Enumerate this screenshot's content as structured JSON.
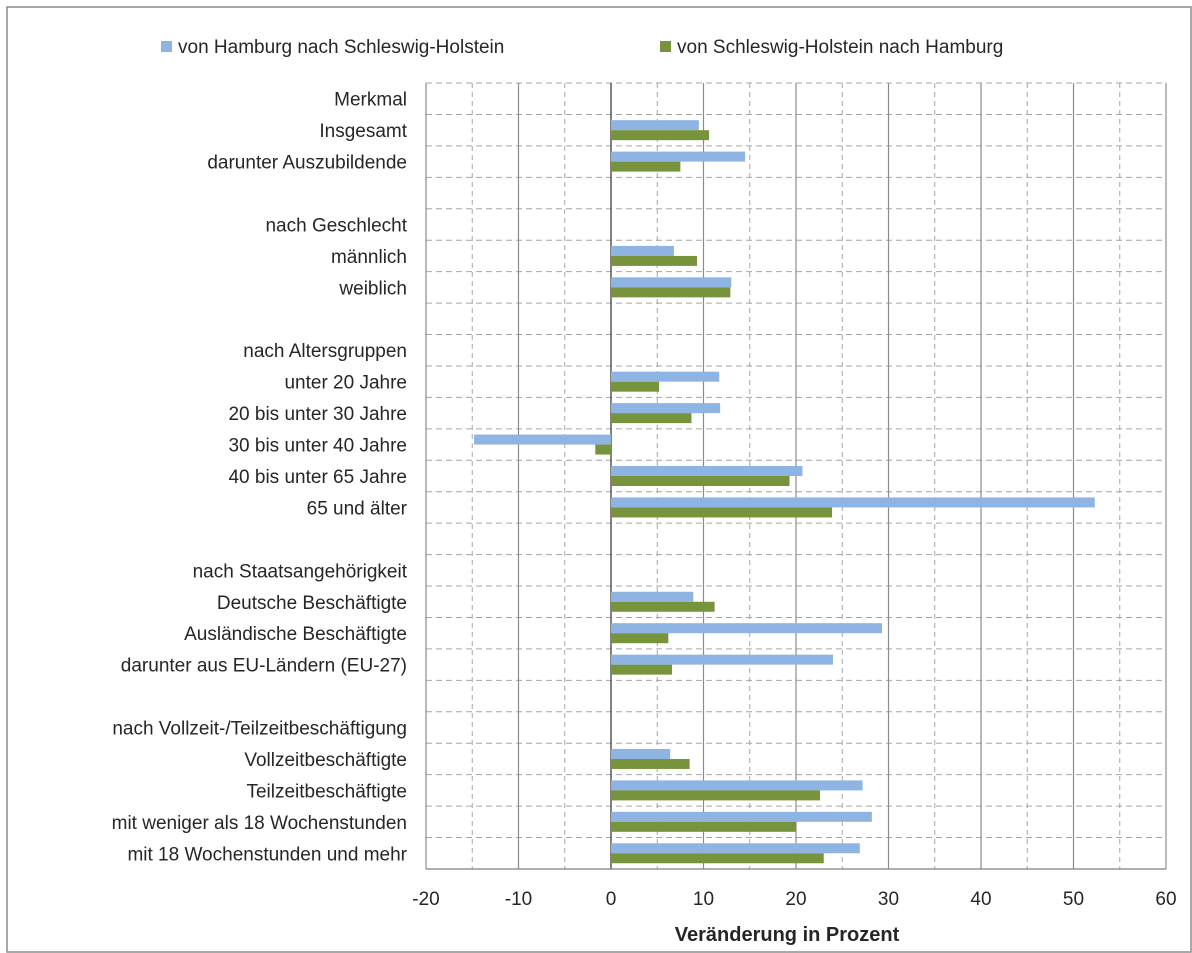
{
  "chart_data": {
    "type": "bar",
    "orientation": "horizontal",
    "categories": [
      "Merkmal",
      "Insgesamt",
      "darunter Auszubildende",
      "",
      "nach Geschlecht",
      "männlich",
      "weiblich",
      "",
      "nach Altersgruppen",
      "unter 20 Jahre",
      "20 bis unter 30 Jahre",
      "30 bis unter 40 Jahre",
      "40 bis unter 65 Jahre",
      "65 und älter",
      "",
      "nach Staatsangehörigkeit",
      "Deutsche Beschäftigte",
      "Ausländische Beschäftigte",
      "darunter aus EU-Ländern (EU-27)",
      "",
      "nach Vollzeit-/Teilzeitbeschäftigung",
      "Vollzeitbeschäftigte",
      "Teilzeitbeschäftigte",
      "mit weniger als 18 Wochenstunden",
      "mit 18 Wochenstunden und mehr"
    ],
    "series": [
      {
        "name": "von Hamburg nach Schleswig-Holstein",
        "color": "#8eb4e3",
        "values": [
          null,
          9.5,
          14.5,
          null,
          null,
          6.8,
          13.0,
          null,
          null,
          11.7,
          11.8,
          -14.8,
          20.7,
          52.3,
          null,
          null,
          8.9,
          29.3,
          24.0,
          null,
          null,
          6.4,
          27.2,
          28.2,
          26.9
        ]
      },
      {
        "name": "von Schleswig-Holstein nach Hamburg",
        "color": "#77933c",
        "values": [
          null,
          10.6,
          7.5,
          null,
          null,
          9.3,
          12.9,
          null,
          null,
          5.2,
          8.7,
          -1.7,
          19.3,
          23.9,
          null,
          null,
          11.2,
          6.2,
          6.6,
          null,
          null,
          8.5,
          22.6,
          20.0,
          23.0
        ]
      }
    ],
    "xticks": [
      "-20",
      "-10",
      "0",
      "10",
      "20",
      "30",
      "40",
      "50",
      "60"
    ],
    "xlim": [
      -20,
      60
    ],
    "xlabel": "Veränderung in Prozent",
    "legend_position": "top",
    "grid": true
  }
}
